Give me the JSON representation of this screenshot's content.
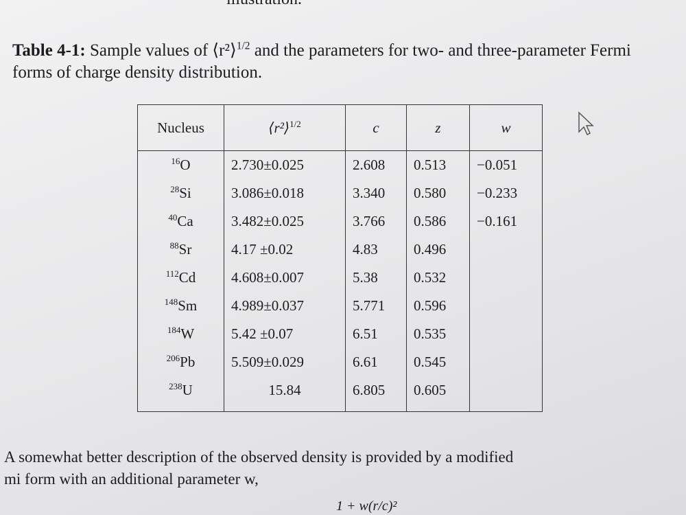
{
  "top_fragment": "illustration.",
  "caption": {
    "label": "Table 4-1:",
    "text_before": "Sample values of ⟨r²⟩",
    "sup": "1/2",
    "text_after": "and the parameters for two- and three-parameter Fermi forms of charge density distribution."
  },
  "table": {
    "headers": [
      {
        "text": "Nucleus"
      },
      {
        "text": "⟨r²⟩",
        "sup": "1/2"
      },
      {
        "text": "c"
      },
      {
        "text": "z"
      },
      {
        "text": "w"
      }
    ],
    "rows": [
      {
        "mass": "16",
        "symbol": "O",
        "cells": [
          "2.730±0.025",
          "2.608",
          "0.513",
          "−0.051"
        ]
      },
      {
        "mass": "28",
        "symbol": "Si",
        "cells": [
          "3.086±0.018",
          "3.340",
          "0.580",
          "−0.233"
        ]
      },
      {
        "mass": "40",
        "symbol": "Ca",
        "cells": [
          "3.482±0.025",
          "3.766",
          "0.586",
          "−0.161"
        ]
      },
      {
        "mass": "88",
        "symbol": "Sr",
        "cells": [
          "4.17 ±0.02",
          "4.83",
          "0.496"
        ]
      },
      {
        "mass": "112",
        "symbol": "Cd",
        "cells": [
          "4.608±0.007",
          "5.38",
          "0.532"
        ]
      },
      {
        "mass": "148",
        "symbol": "Sm",
        "cells": [
          "4.989±0.037",
          "5.771",
          "0.596"
        ]
      },
      {
        "mass": "184",
        "symbol": "W",
        "cells": [
          "5.42 ±0.07",
          "6.51",
          "0.535"
        ]
      },
      {
        "mass": "206",
        "symbol": "Pb",
        "cells": [
          "5.509±0.029",
          "6.61",
          "0.545"
        ]
      },
      {
        "mass": "238",
        "symbol": "U",
        "cells": [
          "15.84",
          "6.805",
          "0.605"
        ]
      }
    ]
  },
  "paragraph": [
    "A somewhat better description of the observed density is provided by a modified",
    "mi form with an additional parameter w,"
  ],
  "equation_fragment": "1 + w(r/c)²"
}
